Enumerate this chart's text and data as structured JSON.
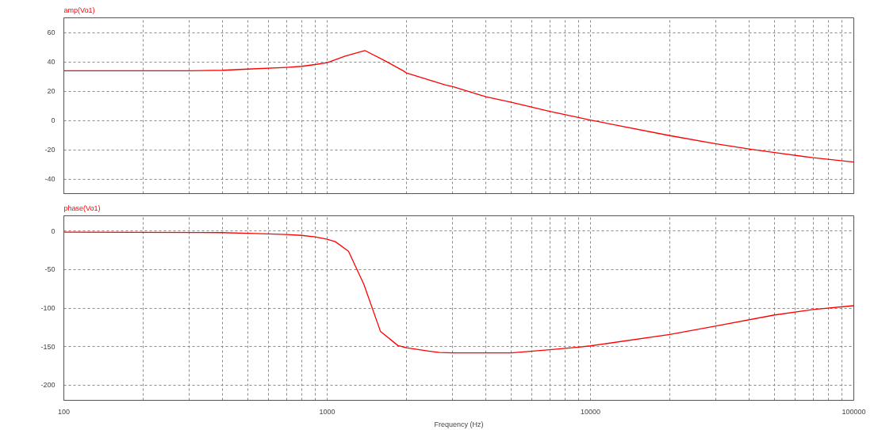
{
  "chart_data": [
    {
      "type": "line",
      "title": "amp(Vo1)",
      "log": "x",
      "grid": true,
      "line_style": "solid",
      "tick_labels": "y",
      "x": [
        100,
        200,
        300,
        400,
        500,
        700,
        800,
        900,
        1000,
        1170,
        1390,
        1660,
        1950,
        2000,
        2800,
        3000,
        4000,
        5000,
        7000,
        10000,
        20000,
        30000,
        40000,
        50000,
        70000,
        100000
      ],
      "series": [
        {
          "color": "#ff0000",
          "values": [
            33.9,
            33.9,
            33.9,
            34.2,
            35.0,
            36.2,
            36.9,
            38.1,
            39.4,
            43.8,
            47.7,
            40.6,
            33.7,
            32.3,
            24.3,
            23.0,
            16.2,
            12.4,
            6.2,
            0.2,
            -10.4,
            -16.0,
            -19.5,
            -22.0,
            -25.5,
            -28.4
          ]
        }
      ],
      "xlim": [
        100,
        100000
      ],
      "ylim": [
        -50,
        70
      ],
      "xticks": [
        100,
        {
          "value": 200,
          "label": null
        },
        {
          "value": 300,
          "label": null
        },
        {
          "value": 400,
          "label": null
        },
        {
          "value": 500,
          "label": null
        },
        {
          "value": 600,
          "label": null
        },
        {
          "value": 700,
          "label": null
        },
        {
          "value": 800,
          "label": null
        },
        {
          "value": 900,
          "label": null
        },
        1000,
        {
          "value": 2000,
          "label": null
        },
        {
          "value": 3000,
          "label": null
        },
        {
          "value": 4000,
          "label": null
        },
        {
          "value": 5000,
          "label": null
        },
        {
          "value": 6000,
          "label": null
        },
        {
          "value": 7000,
          "label": null
        },
        {
          "value": 8000,
          "label": null
        },
        {
          "value": 9000,
          "label": null
        },
        10000,
        {
          "value": 20000,
          "label": null
        },
        {
          "value": 30000,
          "label": null
        },
        {
          "value": 40000,
          "label": null
        },
        {
          "value": 50000,
          "label": null
        },
        {
          "value": 60000,
          "label": null
        },
        {
          "value": 70000,
          "label": null
        },
        {
          "value": 80000,
          "label": null
        },
        {
          "value": 90000,
          "label": null
        },
        100000
      ],
      "yticks": [
        -40,
        -20,
        0,
        20,
        40,
        60
      ]
    },
    {
      "type": "line",
      "title": "phase(Vo1)",
      "xlabel": "Frequency (Hz)",
      "log": "x",
      "grid": true,
      "line_style": "solid",
      "x": [
        100,
        400,
        500,
        600,
        700,
        800,
        900,
        1000,
        1073,
        1205,
        1380,
        1594,
        1857,
        2000,
        2427,
        2675,
        3000,
        5000,
        7000,
        9000,
        10000,
        20000,
        30000,
        50000,
        70000,
        100000
      ],
      "series": [
        {
          "color": "#ff0000",
          "values": [
            -1.2,
            -1.9,
            -2.7,
            -3.5,
            -4.3,
            -5.5,
            -7.4,
            -10.5,
            -13.6,
            -26.1,
            -69.7,
            -130.5,
            -148.8,
            -151.6,
            -155.9,
            -157.9,
            -158.3,
            -158.3,
            -154.3,
            -150.8,
            -149.2,
            -134.3,
            -123.2,
            -109.0,
            -102.0,
            -96.9
          ]
        }
      ],
      "xlim": [
        100,
        100000
      ],
      "ylim": [
        -220,
        20
      ],
      "xticks": [
        100,
        {
          "value": 200,
          "label": null
        },
        {
          "value": 300,
          "label": null
        },
        {
          "value": 400,
          "label": null
        },
        {
          "value": 500,
          "label": null
        },
        {
          "value": 600,
          "label": null
        },
        {
          "value": 700,
          "label": null
        },
        {
          "value": 800,
          "label": null
        },
        {
          "value": 900,
          "label": null
        },
        1000,
        {
          "value": 2000,
          "label": null
        },
        {
          "value": 3000,
          "label": null
        },
        {
          "value": 4000,
          "label": null
        },
        {
          "value": 5000,
          "label": null
        },
        {
          "value": 6000,
          "label": null
        },
        {
          "value": 7000,
          "label": null
        },
        {
          "value": 8000,
          "label": null
        },
        {
          "value": 9000,
          "label": null
        },
        10000,
        {
          "value": 20000,
          "label": null
        },
        {
          "value": 30000,
          "label": null
        },
        {
          "value": 40000,
          "label": null
        },
        {
          "value": 50000,
          "label": null
        },
        {
          "value": 60000,
          "label": null
        },
        {
          "value": 70000,
          "label": null
        },
        {
          "value": 80000,
          "label": null
        },
        {
          "value": 90000,
          "label": null
        },
        100000
      ],
      "yticks": [
        -200,
        -150,
        -100,
        -50,
        0
      ]
    }
  ]
}
